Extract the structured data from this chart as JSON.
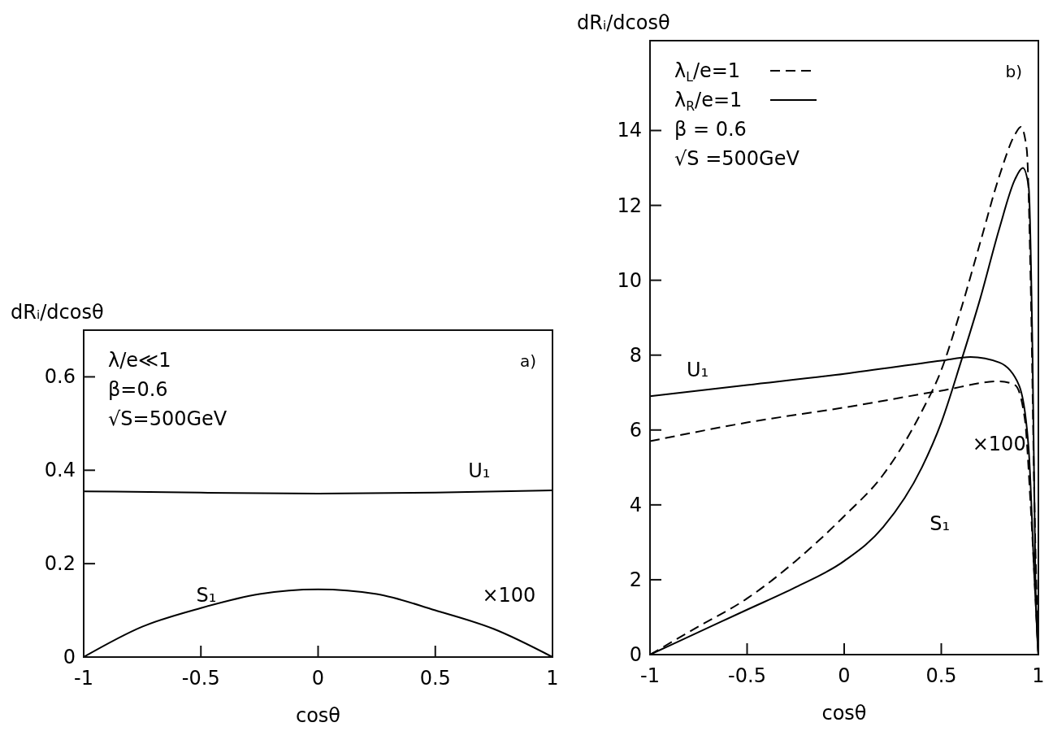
{
  "chart_data": [
    {
      "type": "line",
      "title": "a)",
      "xlabel": "cosθ",
      "ylabel": "dRᵢ/dcosθ",
      "xlim": [
        -1,
        1
      ],
      "ylim": [
        0,
        0.7
      ],
      "xticks": [
        -1,
        -0.5,
        0,
        0.5,
        1
      ],
      "yticks": [
        0,
        0.2,
        0.4,
        0.6
      ],
      "grid": false,
      "legend": false,
      "series": [
        {
          "color": "#000000",
          "line_style": "solid",
          "x": [
            -1,
            -0.5,
            0,
            0.5,
            1
          ],
          "values": [
            0.355,
            0.352,
            0.35,
            0.352,
            0.357
          ]
        },
        {
          "color": "#000000",
          "line_style": "solid",
          "x": [
            -1,
            -0.75,
            -0.5,
            -0.25,
            0,
            0.25,
            0.5,
            0.75,
            1
          ],
          "values": [
            0,
            0.065,
            0.105,
            0.135,
            0.145,
            0.135,
            0.1,
            0.06,
            0
          ]
        }
      ],
      "annotations": [
        "λ/e≪1",
        "β=0.6",
        "√S=500GeV",
        "U₁",
        "S₁",
        "×100"
      ]
    },
    {
      "type": "line",
      "title": "b)",
      "xlabel": "cosθ",
      "ylabel": "dRᵢ/dcosθ",
      "xlim": [
        -1,
        1
      ],
      "ylim": [
        0,
        16.4
      ],
      "xticks": [
        -1,
        -0.5,
        0,
        0.5,
        1
      ],
      "yticks": [
        0,
        2,
        4,
        6,
        8,
        10,
        12,
        14
      ],
      "grid": false,
      "legend": "top left",
      "series": [
        {
          "name": "λ$_{L}$/e=1",
          "color": "#000000",
          "line_style": "dashed",
          "x": [
            -1,
            -0.5,
            0,
            0.5,
            0.8,
            0.88,
            0.93,
            0.96,
            0.99,
            1
          ],
          "values": [
            5.7,
            6.2,
            6.6,
            7.05,
            7.3,
            7.2,
            6.3,
            4,
            1,
            0
          ]
        },
        {
          "name": "λ$_{R}$/e=1",
          "color": "#000000",
          "line_style": "solid",
          "x": [
            -1,
            -0.5,
            0,
            0.5,
            0.65,
            0.8,
            0.9,
            0.95,
            0.98,
            1
          ],
          "values": [
            6.9,
            7.2,
            7.5,
            7.85,
            7.95,
            7.8,
            7.2,
            5.5,
            2,
            0
          ]
        },
        {
          "color": "#000000",
          "line_style": "dashed",
          "x": [
            -1,
            -0.75,
            -0.5,
            -0.25,
            0,
            0.2,
            0.4,
            0.5,
            0.6,
            0.7,
            0.8,
            0.88,
            0.91,
            0.94,
            0.96,
            0.98,
            1
          ],
          "values": [
            0,
            0.75,
            1.5,
            2.5,
            3.7,
            4.8,
            6.5,
            7.6,
            9.2,
            11,
            12.8,
            13.9,
            14.1,
            13.5,
            10,
            4,
            0
          ]
        },
        {
          "color": "#000000",
          "line_style": "solid",
          "x": [
            -1,
            -0.75,
            -0.5,
            -0.25,
            0,
            0.2,
            0.4,
            0.5,
            0.6,
            0.7,
            0.8,
            0.88,
            0.92,
            0.95,
            0.97,
            0.985,
            1
          ],
          "values": [
            0,
            0.6,
            1.2,
            1.8,
            2.5,
            3.4,
            5.0,
            6.2,
            7.8,
            9.5,
            11.4,
            12.7,
            13.0,
            12.5,
            8,
            2,
            0
          ]
        }
      ],
      "annotations": [
        "β = 0.6",
        "√S =500GeV",
        "U₁",
        "S₁",
        "×100"
      ]
    }
  ]
}
